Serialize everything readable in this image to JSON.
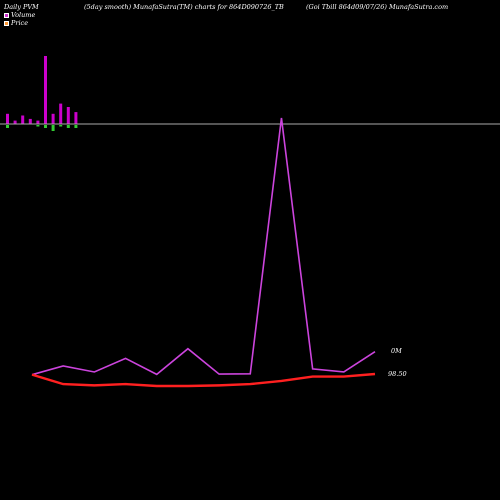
{
  "header": {
    "left": "Daily PVM",
    "center": "(5day smooth) MunafaSutra(TM) charts for 864D090726_TB",
    "right": "(Goi  Tbill 864d09/07/26) MunafaSutra.com"
  },
  "legend": {
    "volume_label": "Volume",
    "price_label": "Price",
    "volume_color": "#cc33cc",
    "price_color": "#ff9933"
  },
  "colors": {
    "background": "#000000",
    "volume_bar": "#cc00cc",
    "volume_bar_down": "#33cc33",
    "volume_line": "#cc44dd",
    "price_line": "#ff2020",
    "baseline": "#aaaaaa",
    "text": "#ffffff"
  },
  "chart_data": {
    "type": "line",
    "series": [
      {
        "name": "Volume",
        "values": [
          1,
          30,
          10,
          55,
          2,
          87,
          3,
          4,
          850,
          20,
          10,
          77
        ]
      },
      {
        "name": "Price",
        "values": [
          98.55,
          98.4,
          98.38,
          98.4,
          98.37,
          98.37,
          98.38,
          98.4,
          98.45,
          98.52,
          98.52,
          98.56
        ]
      }
    ],
    "volume_bars": {
      "up": [
        6,
        2,
        5,
        3,
        2,
        40,
        6,
        12,
        10,
        7
      ],
      "down": [
        2,
        0,
        0,
        0,
        1,
        2,
        4,
        1,
        2,
        2
      ]
    },
    "labels": {
      "volume_last": "0M",
      "price_last": "98.50"
    }
  }
}
